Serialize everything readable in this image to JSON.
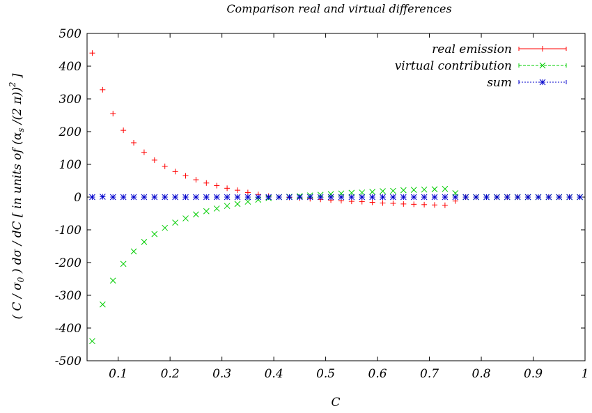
{
  "chart_data": {
    "type": "scatter",
    "title": "Comparison real and virtual differences",
    "xlabel": "C",
    "ylabel_parts": {
      "p1": "( C / σ",
      "sub0": "0",
      "p2": " ) dσ / dC  [ in units of  (α",
      "subs": "s",
      "p3": " /(2 π))",
      "sup2": "2",
      "p4": " ]"
    },
    "xlim": [
      0.04,
      1.0
    ],
    "ylim": [
      -500,
      500
    ],
    "x_ticks": [
      {
        "v": 0.1,
        "label": "0.1"
      },
      {
        "v": 0.2,
        "label": "0.2"
      },
      {
        "v": 0.3,
        "label": "0.3"
      },
      {
        "v": 0.4,
        "label": "0.4"
      },
      {
        "v": 0.5,
        "label": "0.5"
      },
      {
        "v": 0.6,
        "label": "0.6"
      },
      {
        "v": 0.7,
        "label": "0.7"
      },
      {
        "v": 0.8,
        "label": "0.8"
      },
      {
        "v": 0.9,
        "label": "0.9"
      },
      {
        "v": 1.0,
        "label": "1"
      }
    ],
    "y_ticks": [
      {
        "v": 500,
        "label": "500"
      },
      {
        "v": 400,
        "label": "400"
      },
      {
        "v": 300,
        "label": "300"
      },
      {
        "v": 200,
        "label": "200"
      },
      {
        "v": 100,
        "label": "100"
      },
      {
        "v": 0,
        "label": "0"
      },
      {
        "v": -100,
        "label": "-100"
      },
      {
        "v": -200,
        "label": "-200"
      },
      {
        "v": -300,
        "label": "-300"
      },
      {
        "v": -400,
        "label": "-400"
      },
      {
        "v": -500,
        "label": "-500"
      }
    ],
    "grid": false,
    "legend_position": "top-right",
    "series": [
      {
        "name": "real emission",
        "color": "#ff0000",
        "marker": "plus",
        "points": [
          [
            0.05,
            440
          ],
          [
            0.07,
            328
          ],
          [
            0.09,
            255
          ],
          [
            0.11,
            204
          ],
          [
            0.13,
            166
          ],
          [
            0.15,
            137
          ],
          [
            0.17,
            113
          ],
          [
            0.19,
            94
          ],
          [
            0.21,
            78
          ],
          [
            0.23,
            65
          ],
          [
            0.25,
            53
          ],
          [
            0.27,
            43
          ],
          [
            0.29,
            35
          ],
          [
            0.31,
            27
          ],
          [
            0.33,
            21
          ],
          [
            0.35,
            14
          ],
          [
            0.37,
            8
          ],
          [
            0.39,
            3
          ],
          [
            0.41,
            0
          ],
          [
            0.43,
            -1
          ],
          [
            0.45,
            -3
          ],
          [
            0.47,
            -5
          ],
          [
            0.49,
            -7
          ],
          [
            0.51,
            -9
          ],
          [
            0.53,
            -11
          ],
          [
            0.55,
            -13
          ],
          [
            0.57,
            -14
          ],
          [
            0.59,
            -16
          ],
          [
            0.61,
            -18
          ],
          [
            0.63,
            -19
          ],
          [
            0.65,
            -21
          ],
          [
            0.67,
            -22
          ],
          [
            0.69,
            -23
          ],
          [
            0.71,
            -24
          ],
          [
            0.73,
            -25
          ],
          [
            0.75,
            -12
          ],
          [
            0.77,
            0
          ],
          [
            0.79,
            0
          ],
          [
            0.81,
            0
          ],
          [
            0.83,
            0
          ],
          [
            0.85,
            0
          ],
          [
            0.87,
            0
          ],
          [
            0.89,
            0
          ],
          [
            0.91,
            0
          ],
          [
            0.93,
            0
          ],
          [
            0.95,
            0
          ],
          [
            0.97,
            0
          ],
          [
            0.99,
            0
          ]
        ]
      },
      {
        "name": "virtual contribution",
        "color": "#00cc00",
        "marker": "cross",
        "points": [
          [
            0.05,
            -440
          ],
          [
            0.07,
            -328
          ],
          [
            0.09,
            -255
          ],
          [
            0.11,
            -204
          ],
          [
            0.13,
            -166
          ],
          [
            0.15,
            -137
          ],
          [
            0.17,
            -113
          ],
          [
            0.19,
            -94
          ],
          [
            0.21,
            -78
          ],
          [
            0.23,
            -65
          ],
          [
            0.25,
            -53
          ],
          [
            0.27,
            -43
          ],
          [
            0.29,
            -35
          ],
          [
            0.31,
            -27
          ],
          [
            0.33,
            -21
          ],
          [
            0.35,
            -14
          ],
          [
            0.37,
            -8
          ],
          [
            0.39,
            -3
          ],
          [
            0.41,
            0
          ],
          [
            0.43,
            1
          ],
          [
            0.45,
            3
          ],
          [
            0.47,
            5
          ],
          [
            0.49,
            7
          ],
          [
            0.51,
            9
          ],
          [
            0.53,
            11
          ],
          [
            0.55,
            13
          ],
          [
            0.57,
            14
          ],
          [
            0.59,
            16
          ],
          [
            0.61,
            18
          ],
          [
            0.63,
            19
          ],
          [
            0.65,
            21
          ],
          [
            0.67,
            22
          ],
          [
            0.69,
            23
          ],
          [
            0.71,
            24
          ],
          [
            0.73,
            25
          ],
          [
            0.75,
            12
          ],
          [
            0.77,
            0
          ],
          [
            0.79,
            0
          ],
          [
            0.81,
            0
          ],
          [
            0.83,
            0
          ],
          [
            0.85,
            0
          ],
          [
            0.87,
            0
          ],
          [
            0.89,
            0
          ],
          [
            0.91,
            0
          ],
          [
            0.93,
            0
          ],
          [
            0.95,
            0
          ],
          [
            0.97,
            0
          ],
          [
            0.99,
            0
          ]
        ]
      },
      {
        "name": "sum",
        "color": "#0000cc",
        "marker": "star",
        "points": [
          [
            0.05,
            0
          ],
          [
            0.07,
            1
          ],
          [
            0.09,
            0
          ],
          [
            0.11,
            0
          ],
          [
            0.13,
            0
          ],
          [
            0.15,
            0
          ],
          [
            0.17,
            0
          ],
          [
            0.19,
            0
          ],
          [
            0.21,
            0
          ],
          [
            0.23,
            0
          ],
          [
            0.25,
            0
          ],
          [
            0.27,
            0
          ],
          [
            0.29,
            0
          ],
          [
            0.31,
            0
          ],
          [
            0.33,
            0
          ],
          [
            0.35,
            0
          ],
          [
            0.37,
            0
          ],
          [
            0.39,
            0
          ],
          [
            0.41,
            0
          ],
          [
            0.43,
            0
          ],
          [
            0.45,
            0
          ],
          [
            0.47,
            0
          ],
          [
            0.49,
            0
          ],
          [
            0.51,
            0
          ],
          [
            0.53,
            0
          ],
          [
            0.55,
            0
          ],
          [
            0.57,
            0
          ],
          [
            0.59,
            0
          ],
          [
            0.61,
            0
          ],
          [
            0.63,
            0
          ],
          [
            0.65,
            0
          ],
          [
            0.67,
            0
          ],
          [
            0.69,
            0
          ],
          [
            0.71,
            0
          ],
          [
            0.73,
            0
          ],
          [
            0.75,
            0
          ],
          [
            0.77,
            0
          ],
          [
            0.79,
            0
          ],
          [
            0.81,
            0
          ],
          [
            0.83,
            0
          ],
          [
            0.85,
            0
          ],
          [
            0.87,
            0
          ],
          [
            0.89,
            0
          ],
          [
            0.91,
            0
          ],
          [
            0.93,
            0
          ],
          [
            0.95,
            0
          ],
          [
            0.97,
            0
          ],
          [
            0.99,
            0
          ]
        ]
      }
    ]
  }
}
